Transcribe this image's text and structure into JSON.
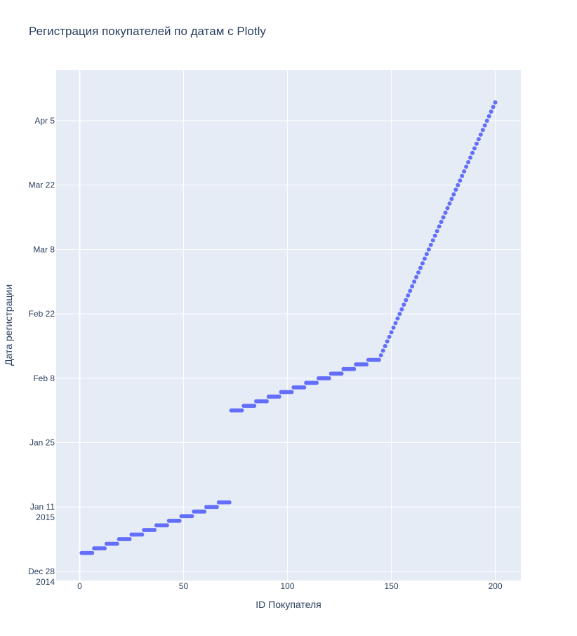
{
  "chart_data": {
    "type": "scatter",
    "title": "Регистрация покупателей по датам с Plotly",
    "xlabel": "ID Покупателя",
    "ylabel": "Дата регистрации",
    "xlim": [
      -11.3,
      212.3
    ],
    "ylim": [
      "2014-12-26",
      "2015-04-16"
    ],
    "x_ticks": [
      {
        "value": 0,
        "label": "0"
      },
      {
        "value": 50,
        "label": "50"
      },
      {
        "value": 100,
        "label": "100"
      },
      {
        "value": 150,
        "label": "150"
      },
      {
        "value": 200,
        "label": "200"
      }
    ],
    "y_ticks": [
      {
        "value": "2014-12-28",
        "label": "Dec 28",
        "sublabel": "2014"
      },
      {
        "value": "2015-01-11",
        "label": "Jan 11",
        "sublabel": "2015"
      },
      {
        "value": "2015-01-25",
        "label": "Jan 25",
        "sublabel": ""
      },
      {
        "value": "2015-02-08",
        "label": "Feb 8",
        "sublabel": ""
      },
      {
        "value": "2015-02-22",
        "label": "Feb 22",
        "sublabel": ""
      },
      {
        "value": "2015-03-08",
        "label": "Mar 8",
        "sublabel": ""
      },
      {
        "value": "2015-03-22",
        "label": "Mar 22",
        "sublabel": ""
      },
      {
        "value": "2015-04-05",
        "label": "Apr 5",
        "sublabel": ""
      }
    ],
    "grid": true,
    "legend": false,
    "marker_color": "#636efa",
    "plot_background": "#e5ecf6",
    "series": [
      {
        "points": [
          {
            "x": 1,
            "y": "2015-01-01"
          },
          {
            "x": 2,
            "y": "2015-01-01"
          },
          {
            "x": 3,
            "y": "2015-01-01"
          },
          {
            "x": 4,
            "y": "2015-01-01"
          },
          {
            "x": 5,
            "y": "2015-01-01"
          },
          {
            "x": 6,
            "y": "2015-01-01"
          },
          {
            "x": 7,
            "y": "2015-01-02"
          },
          {
            "x": 8,
            "y": "2015-01-02"
          },
          {
            "x": 9,
            "y": "2015-01-02"
          },
          {
            "x": 10,
            "y": "2015-01-02"
          },
          {
            "x": 11,
            "y": "2015-01-02"
          },
          {
            "x": 12,
            "y": "2015-01-02"
          },
          {
            "x": 13,
            "y": "2015-01-03"
          },
          {
            "x": 14,
            "y": "2015-01-03"
          },
          {
            "x": 15,
            "y": "2015-01-03"
          },
          {
            "x": 16,
            "y": "2015-01-03"
          },
          {
            "x": 17,
            "y": "2015-01-03"
          },
          {
            "x": 18,
            "y": "2015-01-03"
          },
          {
            "x": 19,
            "y": "2015-01-04"
          },
          {
            "x": 20,
            "y": "2015-01-04"
          },
          {
            "x": 21,
            "y": "2015-01-04"
          },
          {
            "x": 22,
            "y": "2015-01-04"
          },
          {
            "x": 23,
            "y": "2015-01-04"
          },
          {
            "x": 24,
            "y": "2015-01-04"
          },
          {
            "x": 25,
            "y": "2015-01-05"
          },
          {
            "x": 26,
            "y": "2015-01-05"
          },
          {
            "x": 27,
            "y": "2015-01-05"
          },
          {
            "x": 28,
            "y": "2015-01-05"
          },
          {
            "x": 29,
            "y": "2015-01-05"
          },
          {
            "x": 30,
            "y": "2015-01-05"
          },
          {
            "x": 31,
            "y": "2015-01-06"
          },
          {
            "x": 32,
            "y": "2015-01-06"
          },
          {
            "x": 33,
            "y": "2015-01-06"
          },
          {
            "x": 34,
            "y": "2015-01-06"
          },
          {
            "x": 35,
            "y": "2015-01-06"
          },
          {
            "x": 36,
            "y": "2015-01-06"
          },
          {
            "x": 37,
            "y": "2015-01-07"
          },
          {
            "x": 38,
            "y": "2015-01-07"
          },
          {
            "x": 39,
            "y": "2015-01-07"
          },
          {
            "x": 40,
            "y": "2015-01-07"
          },
          {
            "x": 41,
            "y": "2015-01-07"
          },
          {
            "x": 42,
            "y": "2015-01-07"
          },
          {
            "x": 43,
            "y": "2015-01-08"
          },
          {
            "x": 44,
            "y": "2015-01-08"
          },
          {
            "x": 45,
            "y": "2015-01-08"
          },
          {
            "x": 46,
            "y": "2015-01-08"
          },
          {
            "x": 47,
            "y": "2015-01-08"
          },
          {
            "x": 48,
            "y": "2015-01-08"
          },
          {
            "x": 49,
            "y": "2015-01-09"
          },
          {
            "x": 50,
            "y": "2015-01-09"
          },
          {
            "x": 51,
            "y": "2015-01-09"
          },
          {
            "x": 52,
            "y": "2015-01-09"
          },
          {
            "x": 53,
            "y": "2015-01-09"
          },
          {
            "x": 54,
            "y": "2015-01-09"
          },
          {
            "x": 55,
            "y": "2015-01-10"
          },
          {
            "x": 56,
            "y": "2015-01-10"
          },
          {
            "x": 57,
            "y": "2015-01-10"
          },
          {
            "x": 58,
            "y": "2015-01-10"
          },
          {
            "x": 59,
            "y": "2015-01-10"
          },
          {
            "x": 60,
            "y": "2015-01-10"
          },
          {
            "x": 61,
            "y": "2015-01-11"
          },
          {
            "x": 62,
            "y": "2015-01-11"
          },
          {
            "x": 63,
            "y": "2015-01-11"
          },
          {
            "x": 64,
            "y": "2015-01-11"
          },
          {
            "x": 65,
            "y": "2015-01-11"
          },
          {
            "x": 66,
            "y": "2015-01-11"
          },
          {
            "x": 67,
            "y": "2015-01-12"
          },
          {
            "x": 68,
            "y": "2015-01-12"
          },
          {
            "x": 69,
            "y": "2015-01-12"
          },
          {
            "x": 70,
            "y": "2015-01-12"
          },
          {
            "x": 71,
            "y": "2015-01-12"
          },
          {
            "x": 72,
            "y": "2015-01-12"
          },
          {
            "x": 73,
            "y": "2015-02-01"
          },
          {
            "x": 74,
            "y": "2015-02-01"
          },
          {
            "x": 75,
            "y": "2015-02-01"
          },
          {
            "x": 76,
            "y": "2015-02-01"
          },
          {
            "x": 77,
            "y": "2015-02-01"
          },
          {
            "x": 78,
            "y": "2015-02-01"
          },
          {
            "x": 79,
            "y": "2015-02-02"
          },
          {
            "x": 80,
            "y": "2015-02-02"
          },
          {
            "x": 81,
            "y": "2015-02-02"
          },
          {
            "x": 82,
            "y": "2015-02-02"
          },
          {
            "x": 83,
            "y": "2015-02-02"
          },
          {
            "x": 84,
            "y": "2015-02-02"
          },
          {
            "x": 85,
            "y": "2015-02-03"
          },
          {
            "x": 86,
            "y": "2015-02-03"
          },
          {
            "x": 87,
            "y": "2015-02-03"
          },
          {
            "x": 88,
            "y": "2015-02-03"
          },
          {
            "x": 89,
            "y": "2015-02-03"
          },
          {
            "x": 90,
            "y": "2015-02-03"
          },
          {
            "x": 91,
            "y": "2015-02-04"
          },
          {
            "x": 92,
            "y": "2015-02-04"
          },
          {
            "x": 93,
            "y": "2015-02-04"
          },
          {
            "x": 94,
            "y": "2015-02-04"
          },
          {
            "x": 95,
            "y": "2015-02-04"
          },
          {
            "x": 96,
            "y": "2015-02-04"
          },
          {
            "x": 97,
            "y": "2015-02-05"
          },
          {
            "x": 98,
            "y": "2015-02-05"
          },
          {
            "x": 99,
            "y": "2015-02-05"
          },
          {
            "x": 100,
            "y": "2015-02-05"
          },
          {
            "x": 101,
            "y": "2015-02-05"
          },
          {
            "x": 102,
            "y": "2015-02-05"
          },
          {
            "x": 103,
            "y": "2015-02-06"
          },
          {
            "x": 104,
            "y": "2015-02-06"
          },
          {
            "x": 105,
            "y": "2015-02-06"
          },
          {
            "x": 106,
            "y": "2015-02-06"
          },
          {
            "x": 107,
            "y": "2015-02-06"
          },
          {
            "x": 108,
            "y": "2015-02-06"
          },
          {
            "x": 109,
            "y": "2015-02-07"
          },
          {
            "x": 110,
            "y": "2015-02-07"
          },
          {
            "x": 111,
            "y": "2015-02-07"
          },
          {
            "x": 112,
            "y": "2015-02-07"
          },
          {
            "x": 113,
            "y": "2015-02-07"
          },
          {
            "x": 114,
            "y": "2015-02-07"
          },
          {
            "x": 115,
            "y": "2015-02-08"
          },
          {
            "x": 116,
            "y": "2015-02-08"
          },
          {
            "x": 117,
            "y": "2015-02-08"
          },
          {
            "x": 118,
            "y": "2015-02-08"
          },
          {
            "x": 119,
            "y": "2015-02-08"
          },
          {
            "x": 120,
            "y": "2015-02-08"
          },
          {
            "x": 121,
            "y": "2015-02-09"
          },
          {
            "x": 122,
            "y": "2015-02-09"
          },
          {
            "x": 123,
            "y": "2015-02-09"
          },
          {
            "x": 124,
            "y": "2015-02-09"
          },
          {
            "x": 125,
            "y": "2015-02-09"
          },
          {
            "x": 126,
            "y": "2015-02-09"
          },
          {
            "x": 127,
            "y": "2015-02-10"
          },
          {
            "x": 128,
            "y": "2015-02-10"
          },
          {
            "x": 129,
            "y": "2015-02-10"
          },
          {
            "x": 130,
            "y": "2015-02-10"
          },
          {
            "x": 131,
            "y": "2015-02-10"
          },
          {
            "x": 132,
            "y": "2015-02-10"
          },
          {
            "x": 133,
            "y": "2015-02-11"
          },
          {
            "x": 134,
            "y": "2015-02-11"
          },
          {
            "x": 135,
            "y": "2015-02-11"
          },
          {
            "x": 136,
            "y": "2015-02-11"
          },
          {
            "x": 137,
            "y": "2015-02-11"
          },
          {
            "x": 138,
            "y": "2015-02-11"
          },
          {
            "x": 139,
            "y": "2015-02-12"
          },
          {
            "x": 140,
            "y": "2015-02-12"
          },
          {
            "x": 141,
            "y": "2015-02-12"
          },
          {
            "x": 142,
            "y": "2015-02-12"
          },
          {
            "x": 143,
            "y": "2015-02-12"
          },
          {
            "x": 144,
            "y": "2015-02-12"
          },
          {
            "x": 145,
            "y": "2015-02-13"
          },
          {
            "x": 146,
            "y": "2015-02-14"
          },
          {
            "x": 147,
            "y": "2015-02-15"
          },
          {
            "x": 148,
            "y": "2015-02-16"
          },
          {
            "x": 149,
            "y": "2015-02-17"
          },
          {
            "x": 150,
            "y": "2015-02-18"
          },
          {
            "x": 151,
            "y": "2015-02-19"
          },
          {
            "x": 152,
            "y": "2015-02-20"
          },
          {
            "x": 153,
            "y": "2015-02-21"
          },
          {
            "x": 154,
            "y": "2015-02-22"
          },
          {
            "x": 155,
            "y": "2015-02-23"
          },
          {
            "x": 156,
            "y": "2015-02-24"
          },
          {
            "x": 157,
            "y": "2015-02-25"
          },
          {
            "x": 158,
            "y": "2015-02-26"
          },
          {
            "x": 159,
            "y": "2015-02-27"
          },
          {
            "x": 160,
            "y": "2015-02-28"
          },
          {
            "x": 161,
            "y": "2015-03-01"
          },
          {
            "x": 162,
            "y": "2015-03-02"
          },
          {
            "x": 163,
            "y": "2015-03-03"
          },
          {
            "x": 164,
            "y": "2015-03-04"
          },
          {
            "x": 165,
            "y": "2015-03-05"
          },
          {
            "x": 166,
            "y": "2015-03-06"
          },
          {
            "x": 167,
            "y": "2015-03-07"
          },
          {
            "x": 168,
            "y": "2015-03-08"
          },
          {
            "x": 169,
            "y": "2015-03-09"
          },
          {
            "x": 170,
            "y": "2015-03-10"
          },
          {
            "x": 171,
            "y": "2015-03-11"
          },
          {
            "x": 172,
            "y": "2015-03-12"
          },
          {
            "x": 173,
            "y": "2015-03-13"
          },
          {
            "x": 174,
            "y": "2015-03-14"
          },
          {
            "x": 175,
            "y": "2015-03-15"
          },
          {
            "x": 176,
            "y": "2015-03-16"
          },
          {
            "x": 177,
            "y": "2015-03-17"
          },
          {
            "x": 178,
            "y": "2015-03-18"
          },
          {
            "x": 179,
            "y": "2015-03-19"
          },
          {
            "x": 180,
            "y": "2015-03-20"
          },
          {
            "x": 181,
            "y": "2015-03-21"
          },
          {
            "x": 182,
            "y": "2015-03-22"
          },
          {
            "x": 183,
            "y": "2015-03-23"
          },
          {
            "x": 184,
            "y": "2015-03-24"
          },
          {
            "x": 185,
            "y": "2015-03-25"
          },
          {
            "x": 186,
            "y": "2015-03-26"
          },
          {
            "x": 187,
            "y": "2015-03-27"
          },
          {
            "x": 188,
            "y": "2015-03-28"
          },
          {
            "x": 189,
            "y": "2015-03-29"
          },
          {
            "x": 190,
            "y": "2015-03-30"
          },
          {
            "x": 191,
            "y": "2015-03-31"
          },
          {
            "x": 192,
            "y": "2015-04-01"
          },
          {
            "x": 193,
            "y": "2015-04-02"
          },
          {
            "x": 194,
            "y": "2015-04-03"
          },
          {
            "x": 195,
            "y": "2015-04-04"
          },
          {
            "x": 196,
            "y": "2015-04-05"
          },
          {
            "x": 197,
            "y": "2015-04-06"
          },
          {
            "x": 198,
            "y": "2015-04-07"
          },
          {
            "x": 199,
            "y": "2015-04-08"
          },
          {
            "x": 200,
            "y": "2015-04-09"
          }
        ]
      }
    ]
  }
}
